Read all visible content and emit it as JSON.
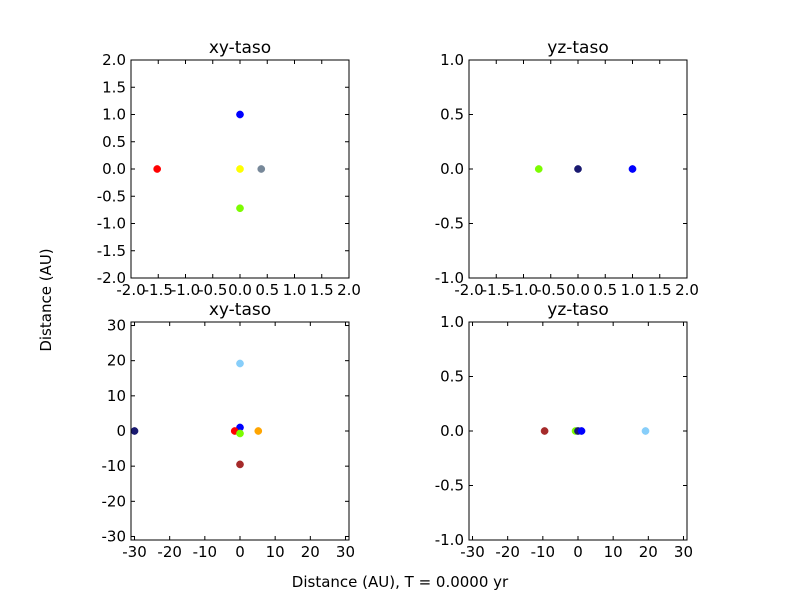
{
  "figure": {
    "xlabel": "Distance (AU), T =   0.0000 yr",
    "ylabel": "Distance (AU)"
  },
  "chart_data": [
    {
      "type": "scatter",
      "title": "xy-taso",
      "xlim": [
        -2.0,
        2.0
      ],
      "ylim": [
        -2.0,
        2.0
      ],
      "xticks": [
        "-2.0",
        "-1.5",
        "-1.0",
        "-0.5",
        "0.0",
        "0.5",
        "1.0",
        "1.5",
        "2.0"
      ],
      "xtick_values": [
        -2.0,
        -1.5,
        -1.0,
        -0.5,
        0.0,
        0.5,
        1.0,
        1.5,
        2.0
      ],
      "yticks": [
        "-2.0",
        "-1.5",
        "-1.0",
        "-0.5",
        "0.0",
        "0.5",
        "1.0",
        "1.5",
        "2.0"
      ],
      "ytick_values": [
        -2.0,
        -1.5,
        -1.0,
        -0.5,
        0.0,
        0.5,
        1.0,
        1.5,
        2.0
      ],
      "points": [
        {
          "x": 0.0,
          "y": 0.0,
          "color": "#ffff00"
        },
        {
          "x": 0.39,
          "y": 0.0,
          "color": "#778899"
        },
        {
          "x": 0.0,
          "y": -0.72,
          "color": "#7cfc00"
        },
        {
          "x": 0.0,
          "y": 1.0,
          "color": "#0000ff"
        },
        {
          "x": -1.52,
          "y": 0.0,
          "color": "#ff0000"
        }
      ]
    },
    {
      "type": "scatter",
      "title": "yz-taso",
      "xlim": [
        -2.0,
        2.0
      ],
      "ylim": [
        -1.0,
        1.0
      ],
      "xticks": [
        "-2.0",
        "-1.5",
        "-1.0",
        "-0.5",
        "0.0",
        "0.5",
        "1.0",
        "1.5",
        "2.0"
      ],
      "xtick_values": [
        -2.0,
        -1.5,
        -1.0,
        -0.5,
        0.0,
        0.5,
        1.0,
        1.5,
        2.0
      ],
      "yticks": [
        "-1.0",
        "-0.5",
        "0.0",
        "0.5",
        "1.0"
      ],
      "ytick_values": [
        -1.0,
        -0.5,
        0.0,
        0.5,
        1.0
      ],
      "points": [
        {
          "x": -0.72,
          "y": 0.0,
          "color": "#7cfc00"
        },
        {
          "x": 0.0,
          "y": 0.0,
          "color": "#191970"
        },
        {
          "x": 1.0,
          "y": 0.0,
          "color": "#0000ff"
        }
      ]
    },
    {
      "type": "scatter",
      "title": "xy-taso",
      "xlim": [
        -31,
        31
      ],
      "ylim": [
        -31,
        31
      ],
      "xticks": [
        "-30",
        "-20",
        "-10",
        "0",
        "10",
        "20",
        "30"
      ],
      "xtick_values": [
        -30,
        -20,
        -10,
        0,
        10,
        20,
        30
      ],
      "yticks": [
        "-30",
        "-20",
        "-10",
        "0",
        "10",
        "20",
        "30"
      ],
      "ytick_values": [
        -30,
        -20,
        -10,
        0,
        10,
        20,
        30
      ],
      "points": [
        {
          "x": -30.0,
          "y": 0.0,
          "color": "#191970"
        },
        {
          "x": 0.0,
          "y": 19.2,
          "color": "#87cefa"
        },
        {
          "x": 0.0,
          "y": 1.0,
          "color": "#0000ff"
        },
        {
          "x": -1.5,
          "y": 0.0,
          "color": "#ff0000"
        },
        {
          "x": 0.0,
          "y": -0.7,
          "color": "#7cfc00"
        },
        {
          "x": 5.2,
          "y": 0.0,
          "color": "#ffa500"
        },
        {
          "x": 0.0,
          "y": -9.5,
          "color": "#a52a2a"
        }
      ]
    },
    {
      "type": "scatter",
      "title": "yz-taso",
      "xlim": [
        -31,
        31
      ],
      "ylim": [
        -1.0,
        1.0
      ],
      "xticks": [
        "-30",
        "-20",
        "-10",
        "0",
        "10",
        "20",
        "30"
      ],
      "xtick_values": [
        -30,
        -20,
        -10,
        0,
        10,
        20,
        30
      ],
      "yticks": [
        "-1.0",
        "-0.5",
        "0.0",
        "0.5",
        "1.0"
      ],
      "ytick_values": [
        -1.0,
        -0.5,
        0.0,
        0.5,
        1.0
      ],
      "points": [
        {
          "x": -9.5,
          "y": 0.0,
          "color": "#a52a2a"
        },
        {
          "x": -0.7,
          "y": 0.0,
          "color": "#7cfc00"
        },
        {
          "x": 0.0,
          "y": 0.0,
          "color": "#191970"
        },
        {
          "x": 1.0,
          "y": 0.0,
          "color": "#0000ff"
        },
        {
          "x": 19.2,
          "y": 0.0,
          "color": "#87cefa"
        }
      ]
    }
  ]
}
